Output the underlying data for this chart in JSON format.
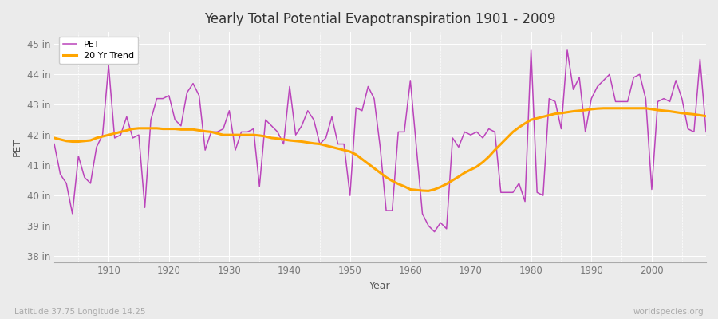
{
  "title": "Yearly Total Potential Evapotranspiration 1901 - 2009",
  "xlabel": "Year",
  "ylabel": "PET",
  "subtitle_left": "Latitude 37.75 Longitude 14.25",
  "subtitle_right": "worldspecies.org",
  "pet_color": "#BB44BB",
  "trend_color": "#FFA500",
  "background_color": "#EBEBEB",
  "plot_bg_color": "#EBEBEB",
  "ylim": [
    37.8,
    45.4
  ],
  "yticks": [
    38,
    39,
    40,
    41,
    42,
    43,
    44,
    45
  ],
  "ytick_labels": [
    "38 in",
    "39 in",
    "40 in",
    "41 in",
    "42 in",
    "43 in",
    "44 in",
    "45 in"
  ],
  "xlim": [
    1901,
    2009
  ],
  "xticks": [
    1910,
    1920,
    1930,
    1940,
    1950,
    1960,
    1970,
    1980,
    1990,
    2000
  ],
  "years": [
    1901,
    1902,
    1903,
    1904,
    1905,
    1906,
    1907,
    1908,
    1909,
    1910,
    1911,
    1912,
    1913,
    1914,
    1915,
    1916,
    1917,
    1918,
    1919,
    1920,
    1921,
    1922,
    1923,
    1924,
    1925,
    1926,
    1927,
    1928,
    1929,
    1930,
    1931,
    1932,
    1933,
    1934,
    1935,
    1936,
    1937,
    1938,
    1939,
    1940,
    1941,
    1942,
    1943,
    1944,
    1945,
    1946,
    1947,
    1948,
    1949,
    1950,
    1951,
    1952,
    1953,
    1954,
    1955,
    1956,
    1957,
    1958,
    1959,
    1960,
    1961,
    1962,
    1963,
    1964,
    1965,
    1966,
    1967,
    1968,
    1969,
    1970,
    1971,
    1972,
    1973,
    1974,
    1975,
    1976,
    1977,
    1978,
    1979,
    1980,
    1981,
    1982,
    1983,
    1984,
    1985,
    1986,
    1987,
    1988,
    1989,
    1990,
    1991,
    1992,
    1993,
    1994,
    1995,
    1996,
    1997,
    1998,
    1999,
    2000,
    2001,
    2002,
    2003,
    2004,
    2005,
    2006,
    2007,
    2008,
    2009
  ],
  "pet": [
    41.7,
    40.7,
    40.4,
    39.4,
    41.3,
    40.6,
    40.4,
    41.6,
    42.0,
    44.3,
    41.9,
    42.0,
    42.6,
    41.9,
    42.0,
    39.6,
    42.5,
    43.2,
    43.2,
    43.3,
    42.5,
    42.3,
    43.4,
    43.7,
    43.3,
    41.5,
    42.1,
    42.1,
    42.2,
    42.8,
    41.5,
    42.1,
    42.1,
    42.2,
    40.3,
    42.5,
    42.3,
    42.1,
    41.7,
    43.6,
    42.0,
    42.3,
    42.8,
    42.5,
    41.7,
    41.9,
    42.6,
    41.7,
    41.7,
    40.0,
    42.9,
    42.8,
    43.6,
    43.2,
    41.6,
    39.5,
    39.5,
    42.1,
    42.1,
    43.8,
    41.6,
    39.4,
    39.0,
    38.8,
    39.1,
    38.9,
    41.9,
    41.6,
    42.1,
    42.0,
    42.1,
    41.9,
    42.2,
    42.1,
    40.1,
    40.1,
    40.1,
    40.4,
    39.8,
    44.8,
    40.1,
    40.0,
    43.2,
    43.1,
    42.2,
    44.8,
    43.5,
    43.9,
    42.1,
    43.2,
    43.6,
    43.8,
    44.0,
    43.1,
    43.1,
    43.1,
    43.9,
    44.0,
    43.2,
    40.2,
    43.1,
    43.2,
    43.1,
    43.8,
    43.2,
    42.2,
    42.1,
    44.5,
    42.1
  ],
  "trend": [
    41.9,
    41.85,
    41.8,
    41.78,
    41.78,
    41.8,
    41.82,
    41.9,
    41.95,
    42.0,
    42.05,
    42.1,
    42.15,
    42.2,
    42.22,
    42.22,
    42.22,
    42.22,
    42.2,
    42.2,
    42.2,
    42.18,
    42.18,
    42.18,
    42.15,
    42.12,
    42.1,
    42.05,
    42.0,
    42.0,
    42.0,
    42.0,
    42.0,
    42.0,
    41.98,
    41.95,
    41.9,
    41.88,
    41.85,
    41.82,
    41.8,
    41.78,
    41.75,
    41.72,
    41.7,
    41.65,
    41.6,
    41.55,
    41.5,
    41.45,
    41.35,
    41.2,
    41.05,
    40.9,
    40.75,
    40.6,
    40.48,
    40.38,
    40.3,
    40.2,
    40.18,
    40.16,
    40.15,
    40.2,
    40.28,
    40.38,
    40.5,
    40.62,
    40.75,
    40.85,
    40.95,
    41.1,
    41.28,
    41.5,
    41.7,
    41.9,
    42.1,
    42.25,
    42.38,
    42.5,
    42.55,
    42.6,
    42.65,
    42.7,
    42.72,
    42.75,
    42.78,
    42.8,
    42.82,
    42.85,
    42.87,
    42.88,
    42.88,
    42.88,
    42.88,
    42.88,
    42.88,
    42.88,
    42.88,
    42.85,
    42.82,
    42.8,
    42.78,
    42.75,
    42.72,
    42.7,
    42.68,
    42.65,
    42.62
  ]
}
